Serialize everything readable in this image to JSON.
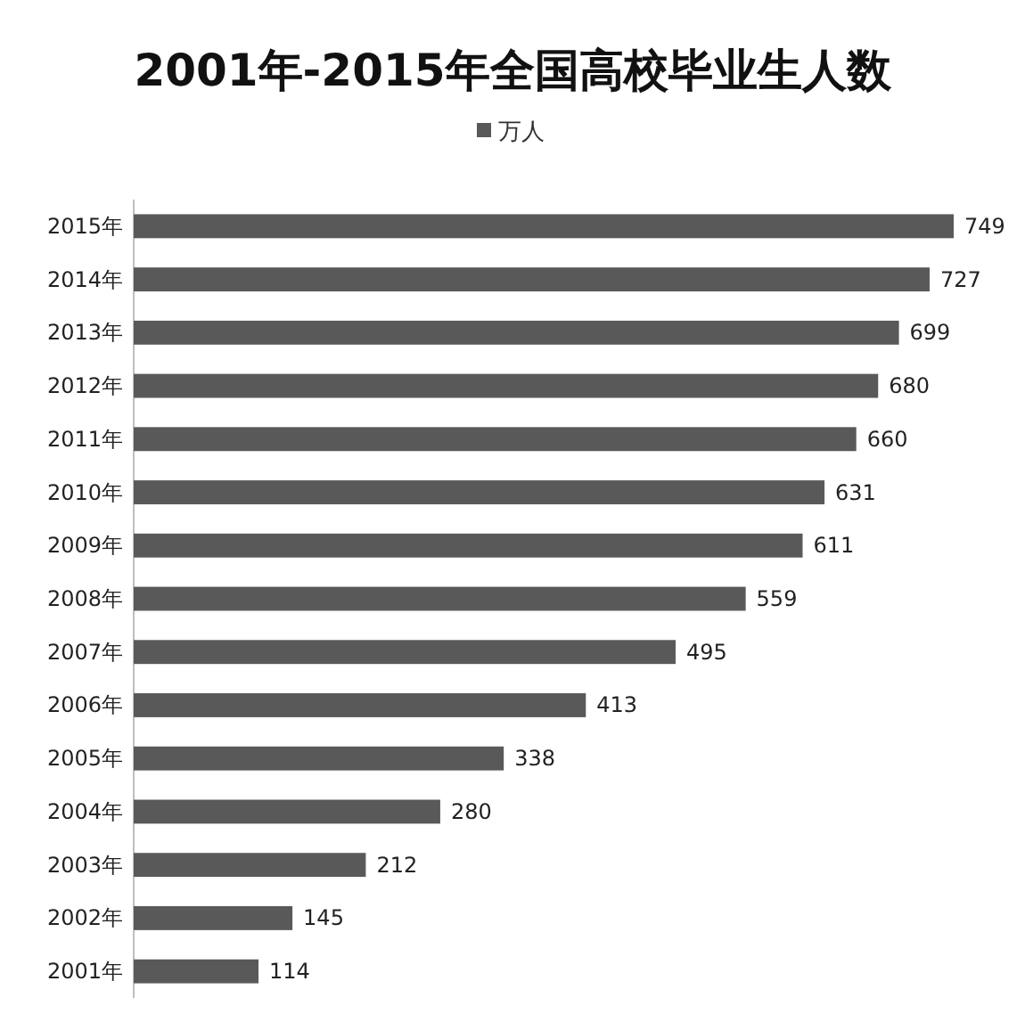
{
  "chart_data": {
    "type": "bar",
    "orientation": "horizontal",
    "title": "2001年-2015年全国高校毕业生人数",
    "categories": [
      "2015年",
      "2014年",
      "2013年",
      "2012年",
      "2011年",
      "2010年",
      "2009年",
      "2008年",
      "2007年",
      "2006年",
      "2005年",
      "2004年",
      "2003年",
      "2002年",
      "2001年"
    ],
    "series": [
      {
        "name": "万人",
        "color": "#595959",
        "values": [
          749,
          727,
          699,
          680,
          660,
          631,
          611,
          559,
          495,
          413,
          338,
          280,
          212,
          145,
          114
        ]
      }
    ],
    "data_labels": true,
    "legend": "top"
  }
}
